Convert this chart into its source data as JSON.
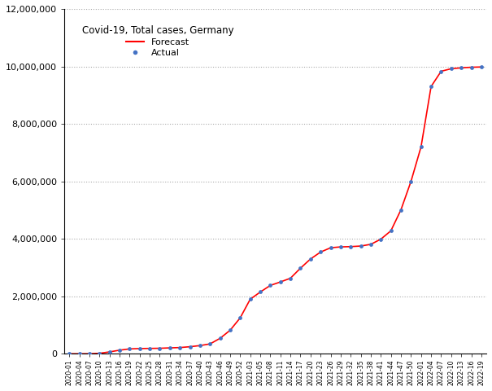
{
  "title": "Covid-19, Total cases, Germany",
  "forecast_color": "#FF0000",
  "actual_color": "#4472C4",
  "background_color": "#FFFFFF",
  "grid_color": "#AAAAAA",
  "ylim": [
    0,
    12000000
  ],
  "yticks": [
    0,
    2000000,
    4000000,
    6000000,
    8000000,
    10000000,
    12000000
  ],
  "ytick_labels": [
    "0",
    "2,000,000",
    "4,000,000",
    "6,000,000",
    "8,000,000",
    "10,000,000",
    "12,000,000"
  ],
  "weeks": [
    "2020-01",
    "2020-04",
    "2020-07",
    "2020-10",
    "2020-13",
    "2020-16",
    "2020-19",
    "2020-22",
    "2020-25",
    "2020-28",
    "2020-31",
    "2020-34",
    "2020-37",
    "2020-40",
    "2020-43",
    "2020-46",
    "2020-49",
    "2020-52",
    "2021-03",
    "2021-05",
    "2021-08",
    "2021-11",
    "2021-14",
    "2021-17",
    "2021-20",
    "2021-23",
    "2021-26",
    "2021-29",
    "2021-32",
    "2021-35",
    "2021-38",
    "2021-41",
    "2021-44",
    "2021-47",
    "2021-50",
    "2022-01",
    "2022-04",
    "2022-07",
    "2022-10",
    "2022-13",
    "2022-16",
    "2022-19"
  ],
  "values": [
    2000,
    2100,
    3500,
    18000,
    67000,
    127000,
    171000,
    183000,
    188000,
    193000,
    207000,
    218000,
    247000,
    287000,
    344000,
    540000,
    820000,
    1250000,
    1900000,
    2150000,
    2380000,
    2500000,
    2630000,
    2980000,
    3300000,
    3540000,
    3690000,
    3720000,
    3730000,
    3750000,
    3810000,
    3990000,
    4280000,
    5010000,
    6000000,
    7200000,
    9300000,
    9830000,
    9920000,
    9950000,
    9970000,
    9980000
  ]
}
